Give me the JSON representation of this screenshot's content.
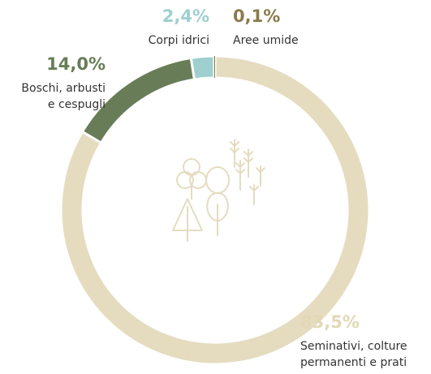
{
  "chart_data": {
    "type": "donut",
    "categories": [
      "Seminativi, colture\npermanenti e prati",
      "Boschi, arbusti\ne cespugli",
      "Corpi idrici",
      "Aree umide"
    ],
    "values": [
      83.5,
      14.0,
      2.4,
      0.1
    ],
    "value_labels": [
      "83,5%",
      "14,0%",
      "2,4%",
      "0,1%"
    ],
    "colors": [
      "#e5dcc0",
      "#687d57",
      "#9fcfcf",
      "#8c7a50"
    ],
    "label_colors": [
      "#e2d8b6",
      "#687d57",
      "#9fcfcf",
      "#8b7a4c"
    ]
  }
}
